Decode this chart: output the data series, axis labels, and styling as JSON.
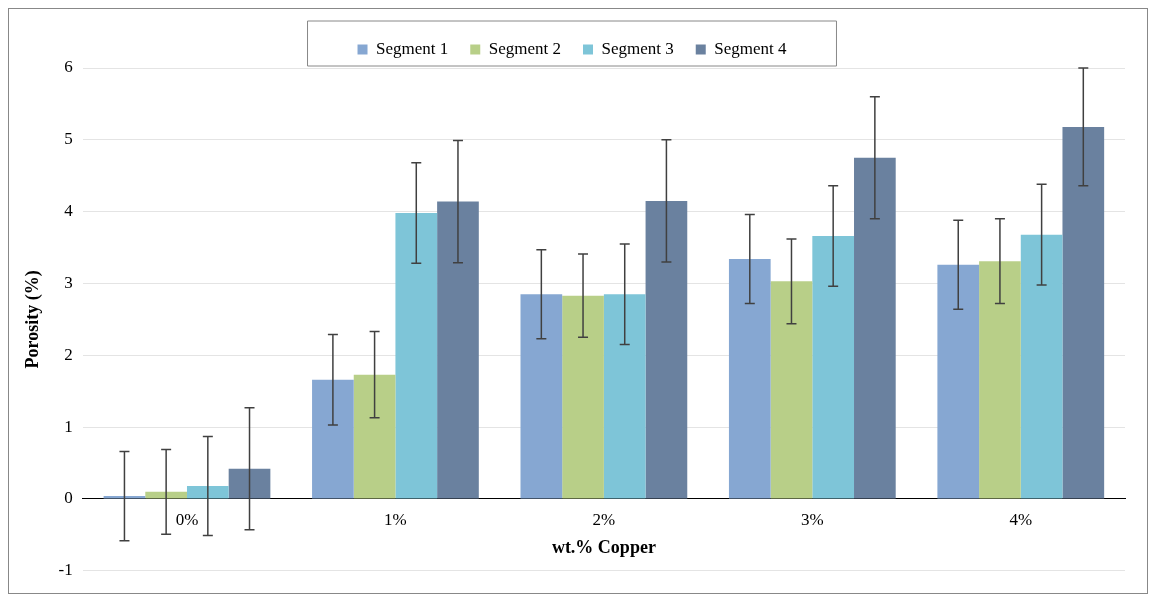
{
  "chart_data": {
    "type": "bar",
    "xlabel": "wt.% Copper",
    "ylabel": "Porosity (%)",
    "categories": [
      "0%",
      "1%",
      "2%",
      "3%",
      "4%"
    ],
    "series": [
      {
        "name": "Segment 1",
        "color": "#86a7d2",
        "values": [
          0.04,
          1.66,
          2.85,
          3.34,
          3.26
        ],
        "errors": [
          0.62,
          0.63,
          0.62,
          0.62,
          0.62
        ]
      },
      {
        "name": "Segment 2",
        "color": "#b8cf88",
        "values": [
          0.1,
          1.73,
          2.83,
          3.03,
          3.31
        ],
        "errors": [
          0.59,
          0.6,
          0.58,
          0.59,
          0.59
        ]
      },
      {
        "name": "Segment 3",
        "color": "#7ec5d8",
        "values": [
          0.18,
          3.98,
          2.85,
          3.66,
          3.68
        ],
        "errors": [
          0.69,
          0.7,
          0.7,
          0.7,
          0.7
        ]
      },
      {
        "name": "Segment 4",
        "color": "#6a819f",
        "values": [
          0.42,
          4.14,
          4.15,
          4.75,
          5.18
        ],
        "errors": [
          0.85,
          0.85,
          0.85,
          0.85,
          0.82
        ]
      }
    ],
    "ylim": [
      -1,
      6
    ],
    "yticks": [
      -1,
      0,
      1,
      2,
      3,
      4,
      5,
      6
    ],
    "grid": "y",
    "legend": "top"
  }
}
